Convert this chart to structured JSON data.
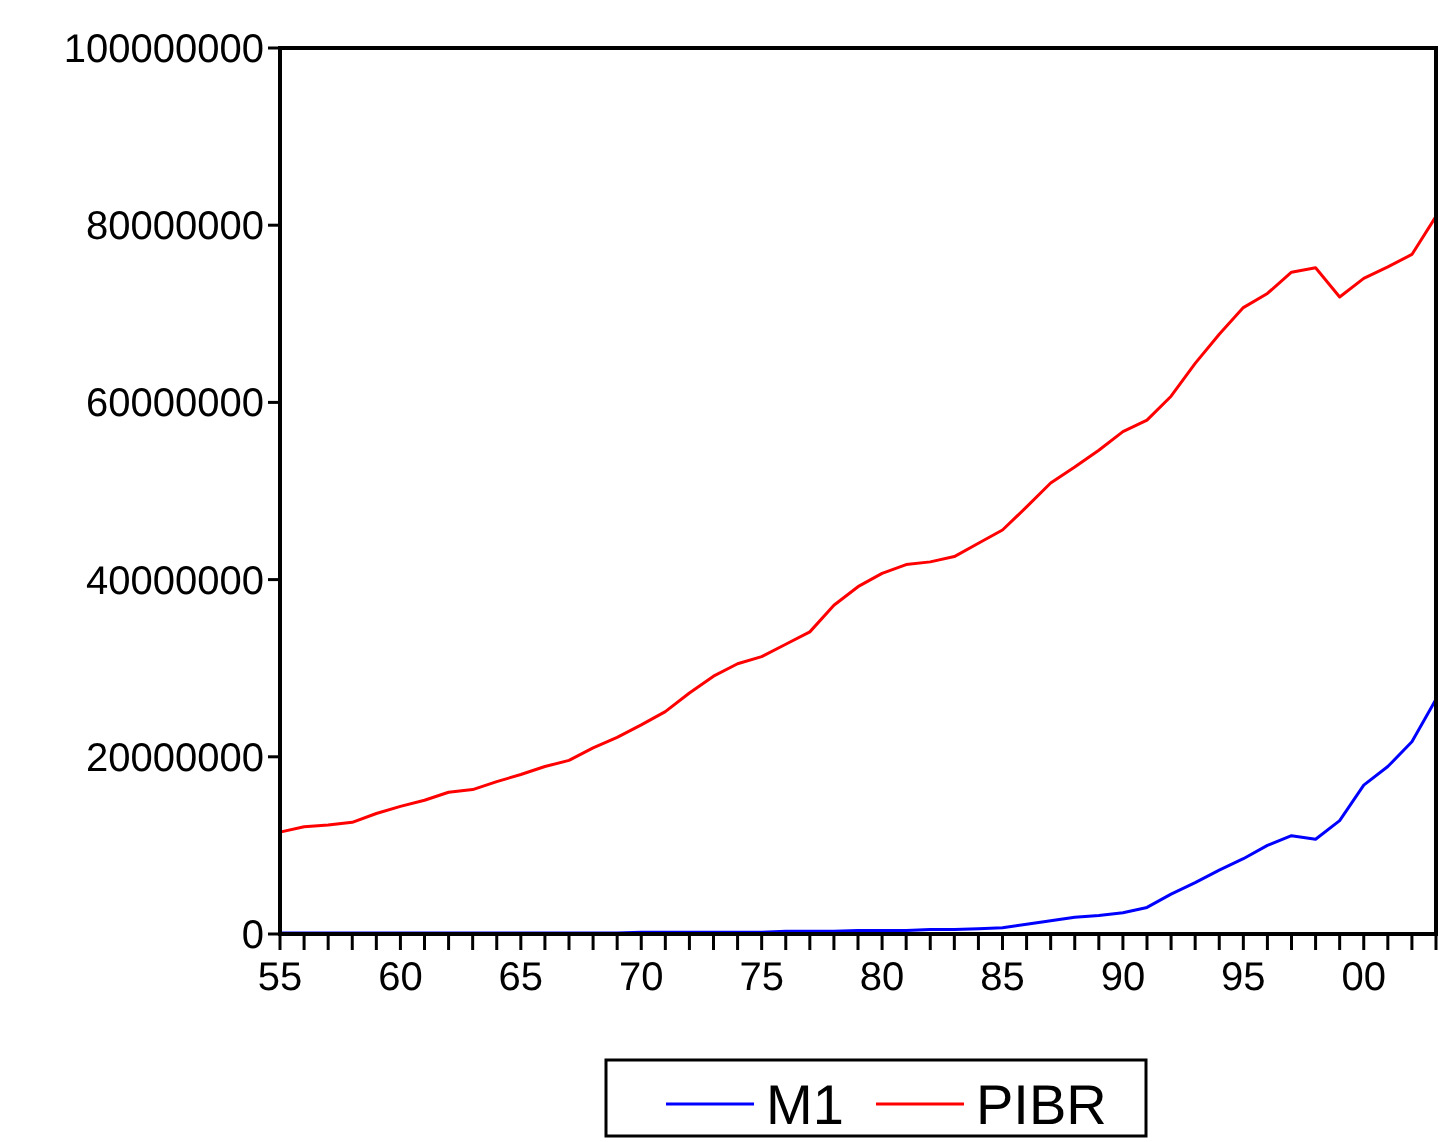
{
  "chart_data": {
    "type": "line",
    "x": [
      1955,
      1956,
      1957,
      1958,
      1959,
      1960,
      1961,
      1962,
      1963,
      1964,
      1965,
      1966,
      1967,
      1968,
      1969,
      1970,
      1971,
      1972,
      1973,
      1974,
      1975,
      1976,
      1977,
      1978,
      1979,
      1980,
      1981,
      1982,
      1983,
      1984,
      1985,
      1986,
      1987,
      1988,
      1989,
      1990,
      1991,
      1992,
      1993,
      1994,
      1995,
      1996,
      1997,
      1998,
      1999,
      2000,
      2001,
      2002,
      2003
    ],
    "series": [
      {
        "name": "M1",
        "color": "#0000ff",
        "values": [
          100000,
          100000,
          100000,
          100000,
          100000,
          100000,
          100000,
          100000,
          100000,
          100000,
          100000,
          100000,
          100000,
          100000,
          100000,
          200000,
          200000,
          200000,
          200000,
          200000,
          200000,
          300000,
          300000,
          300000,
          400000,
          400000,
          400000,
          500000,
          500000,
          600000,
          700000,
          1100000,
          1500000,
          1900000,
          2100000,
          2400000,
          3000000,
          4500000,
          5800000,
          7200000,
          8500000,
          10000000,
          11100000,
          10700000,
          12800000,
          16800000,
          18900000,
          21700000,
          26500000
        ]
      },
      {
        "name": "PIBR",
        "color": "#ff0000",
        "values": [
          11500000,
          12100000,
          12300000,
          12600000,
          13600000,
          14400000,
          15100000,
          16000000,
          16300000,
          17200000,
          18000000,
          18900000,
          19600000,
          21000000,
          22200000,
          23600000,
          25100000,
          27200000,
          29100000,
          30500000,
          31300000,
          32700000,
          34100000,
          37100000,
          39200000,
          40700000,
          41700000,
          42000000,
          42600000,
          44100000,
          45600000,
          48200000,
          50900000,
          52700000,
          54600000,
          56700000,
          58000000,
          60700000,
          64400000,
          67700000,
          70700000,
          72300000,
          74700000,
          75200000,
          71900000,
          74000000,
          75300000,
          76700000,
          81000000
        ]
      }
    ],
    "xlim": [
      1955,
      2003
    ],
    "xticks": [
      {
        "value": 1955,
        "label": "55"
      },
      {
        "value": 1956,
        "label": null
      },
      {
        "value": 1957,
        "label": null
      },
      {
        "value": 1958,
        "label": null
      },
      {
        "value": 1959,
        "label": null
      },
      {
        "value": 1960,
        "label": "60"
      },
      {
        "value": 1961,
        "label": null
      },
      {
        "value": 1962,
        "label": null
      },
      {
        "value": 1963,
        "label": null
      },
      {
        "value": 1964,
        "label": null
      },
      {
        "value": 1965,
        "label": "65"
      },
      {
        "value": 1966,
        "label": null
      },
      {
        "value": 1967,
        "label": null
      },
      {
        "value": 1968,
        "label": null
      },
      {
        "value": 1969,
        "label": null
      },
      {
        "value": 1970,
        "label": "70"
      },
      {
        "value": 1971,
        "label": null
      },
      {
        "value": 1972,
        "label": null
      },
      {
        "value": 1973,
        "label": null
      },
      {
        "value": 1974,
        "label": null
      },
      {
        "value": 1975,
        "label": "75"
      },
      {
        "value": 1976,
        "label": null
      },
      {
        "value": 1977,
        "label": null
      },
      {
        "value": 1978,
        "label": null
      },
      {
        "value": 1979,
        "label": null
      },
      {
        "value": 1980,
        "label": "80"
      },
      {
        "value": 1981,
        "label": null
      },
      {
        "value": 1982,
        "label": null
      },
      {
        "value": 1983,
        "label": null
      },
      {
        "value": 1984,
        "label": null
      },
      {
        "value": 1985,
        "label": "85"
      },
      {
        "value": 1986,
        "label": null
      },
      {
        "value": 1987,
        "label": null
      },
      {
        "value": 1988,
        "label": null
      },
      {
        "value": 1989,
        "label": null
      },
      {
        "value": 1990,
        "label": "90"
      },
      {
        "value": 1991,
        "label": null
      },
      {
        "value": 1992,
        "label": null
      },
      {
        "value": 1993,
        "label": null
      },
      {
        "value": 1994,
        "label": null
      },
      {
        "value": 1995,
        "label": "95"
      },
      {
        "value": 1996,
        "label": null
      },
      {
        "value": 1997,
        "label": null
      },
      {
        "value": 1998,
        "label": null
      },
      {
        "value": 1999,
        "label": null
      },
      {
        "value": 2000,
        "label": "00"
      },
      {
        "value": 2001,
        "label": null
      },
      {
        "value": 2002,
        "label": null
      },
      {
        "value": 2003,
        "label": null
      }
    ],
    "ylim": [
      0,
      100000000
    ],
    "yticks": [
      0,
      20000000,
      40000000,
      60000000,
      80000000,
      100000000
    ],
    "grid": false,
    "legend": "bottom",
    "marker": "none",
    "line_style": "solid"
  }
}
